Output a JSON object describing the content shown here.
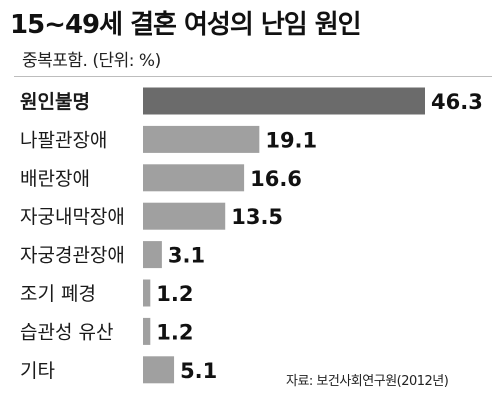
{
  "title": "15~49세 결혼 여성의 난임 원인",
  "subtitle": "중복포함. (단위: %)",
  "source": "자료: 보건사회연구원(2012년)",
  "colors": {
    "highlight_bar": "#6b6b6b",
    "bar": "#a0a0a0",
    "text": "#1a1a1a"
  },
  "chart_data": {
    "type": "bar",
    "orientation": "horizontal",
    "categories": [
      "원인불명",
      "나팔관장애",
      "배란장애",
      "자궁내막장애",
      "자궁경관장애",
      "조기 폐경",
      "습관성 유산",
      "기타"
    ],
    "values": [
      46.3,
      19.1,
      16.6,
      13.5,
      3.1,
      1.2,
      1.2,
      5.1
    ],
    "value_labels": [
      "46.3",
      "19.1",
      "16.6",
      "13.5",
      "3.1",
      "1.2",
      "1.2",
      "5.1"
    ],
    "highlight_index": 0,
    "title": "15~49세 결혼 여성의 난임 원인",
    "subtitle": "중복포함. (단위: %)",
    "xlabel": "",
    "ylabel": "",
    "grid": false,
    "legend": "none"
  }
}
